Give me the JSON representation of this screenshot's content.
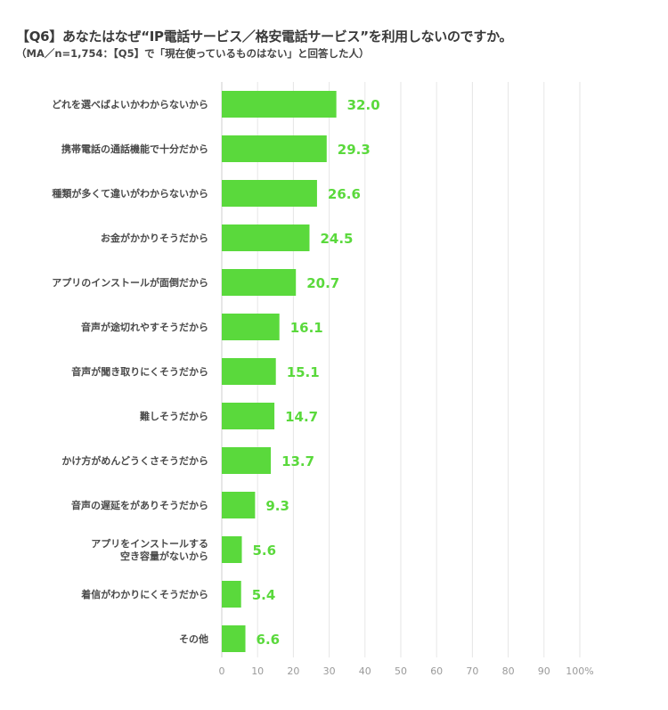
{
  "chart_data": {
    "type": "bar",
    "orientation": "horizontal",
    "title": "【Q6】あなたはなぜ“IP電話サービス／格安電話サービス”を利用しないのですか。",
    "subtitle": "（MA／n=1,754：【Q5】で「現在使っているものはない」と回答した人）",
    "categories": [
      [
        "どれを選べばよいかわからないから"
      ],
      [
        "携帯電話の通話機能で十分だから"
      ],
      [
        "種類が多くて違いがわからないから"
      ],
      [
        "お金がかかりそうだから"
      ],
      [
        "アプリのインストールが面倒だから"
      ],
      [
        "音声が途切れやすそうだから"
      ],
      [
        "音声が聞き取りにくそうだから"
      ],
      [
        "難しそうだから"
      ],
      [
        "かけ方がめんどうくさそうだから"
      ],
      [
        "音声の遅延をがありそうだから"
      ],
      [
        "アプリをインストールする",
        "空き容量がないから"
      ],
      [
        "着信がわかりにくそうだから"
      ],
      [
        "その他"
      ]
    ],
    "values": [
      32.0,
      29.3,
      26.6,
      24.5,
      20.7,
      16.1,
      15.1,
      14.7,
      13.7,
      9.3,
      5.6,
      5.4,
      6.6
    ],
    "value_labels": [
      "32.0",
      "29.3",
      "26.6",
      "24.5",
      "20.7",
      "16.1",
      "15.1",
      "14.7",
      "13.7",
      "9.3",
      "5.6",
      "5.4",
      "6.6"
    ],
    "x_ticks": [
      "0",
      "10",
      "20",
      "30",
      "40",
      "50",
      "60",
      "70",
      "80",
      "90",
      "100%"
    ],
    "xlim": [
      0,
      100
    ],
    "grid": true,
    "bar_color": "#5ad93c",
    "label_color": "#5ad93c"
  }
}
